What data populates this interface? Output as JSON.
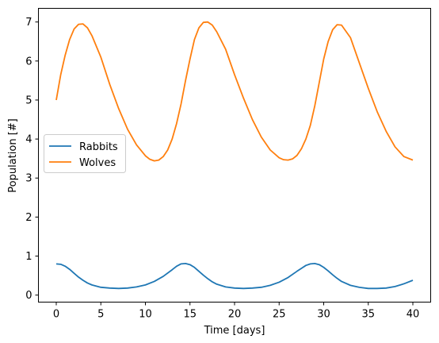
{
  "chart_data": {
    "type": "line",
    "title": "",
    "xlabel": "Time [days]",
    "ylabel": "Population [#]",
    "xlim": [
      -2,
      42
    ],
    "ylim": [
      -0.18,
      7.35
    ],
    "xticks": [
      0,
      5,
      10,
      15,
      20,
      25,
      30,
      35,
      40
    ],
    "yticks": [
      0,
      1,
      2,
      3,
      4,
      5,
      6,
      7
    ],
    "grid": false,
    "legend_position": "center-left",
    "series": [
      {
        "name": "Rabbits",
        "color": "#1f77b4",
        "x": [
          0,
          0.5,
          1,
          1.5,
          2,
          2.5,
          3,
          3.5,
          4,
          5,
          6,
          7,
          8,
          9,
          10,
          11,
          12,
          13,
          13.5,
          14,
          14.5,
          15,
          15.5,
          16,
          16.5,
          17,
          17.5,
          18,
          19,
          20,
          21,
          22,
          23,
          24,
          25,
          26,
          27,
          28,
          28.5,
          29,
          29.5,
          30,
          30.5,
          31,
          31.5,
          32,
          33,
          34,
          35,
          36,
          37,
          38,
          39,
          40
        ],
        "y": [
          0.8,
          0.79,
          0.74,
          0.66,
          0.56,
          0.46,
          0.38,
          0.31,
          0.26,
          0.2,
          0.18,
          0.17,
          0.18,
          0.21,
          0.26,
          0.35,
          0.48,
          0.65,
          0.74,
          0.8,
          0.81,
          0.78,
          0.71,
          0.61,
          0.51,
          0.42,
          0.34,
          0.28,
          0.21,
          0.18,
          0.17,
          0.18,
          0.2,
          0.25,
          0.33,
          0.45,
          0.61,
          0.76,
          0.8,
          0.81,
          0.78,
          0.71,
          0.62,
          0.52,
          0.43,
          0.35,
          0.25,
          0.2,
          0.17,
          0.17,
          0.18,
          0.22,
          0.29,
          0.38
        ]
      },
      {
        "name": "Wolves",
        "color": "#ff7f0e",
        "x": [
          0,
          0.5,
          1,
          1.5,
          2,
          2.5,
          3,
          3.5,
          4,
          5,
          6,
          7,
          8,
          9,
          10,
          10.5,
          11,
          11.5,
          12,
          12.5,
          13,
          13.5,
          14,
          14.5,
          15,
          15.5,
          16,
          16.5,
          17,
          17.5,
          18,
          19,
          20,
          21,
          22,
          23,
          24,
          25,
          25.5,
          26,
          26.5,
          27,
          27.5,
          28,
          28.5,
          29,
          29.5,
          30,
          30.5,
          31,
          31.5,
          32,
          33,
          34,
          35,
          36,
          37,
          38,
          39,
          40
        ],
        "y": [
          5.0,
          5.65,
          6.15,
          6.55,
          6.82,
          6.94,
          6.95,
          6.85,
          6.65,
          6.1,
          5.4,
          4.78,
          4.25,
          3.85,
          3.57,
          3.48,
          3.44,
          3.46,
          3.55,
          3.72,
          4.0,
          4.4,
          4.9,
          5.5,
          6.05,
          6.55,
          6.85,
          6.99,
          7.0,
          6.92,
          6.75,
          6.3,
          5.65,
          5.05,
          4.5,
          4.05,
          3.72,
          3.52,
          3.47,
          3.46,
          3.49,
          3.58,
          3.75,
          4.0,
          4.35,
          4.85,
          5.45,
          6.05,
          6.5,
          6.8,
          6.93,
          6.92,
          6.6,
          5.95,
          5.3,
          4.7,
          4.2,
          3.8,
          3.55,
          3.46
        ]
      }
    ]
  }
}
